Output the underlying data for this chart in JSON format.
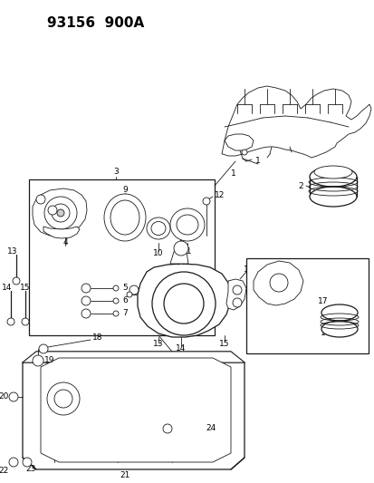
{
  "title": "93156  900A",
  "bg_color": "#ffffff",
  "line_color": "#1a1a1a",
  "fig_width": 4.14,
  "fig_height": 5.33,
  "dpi": 100
}
